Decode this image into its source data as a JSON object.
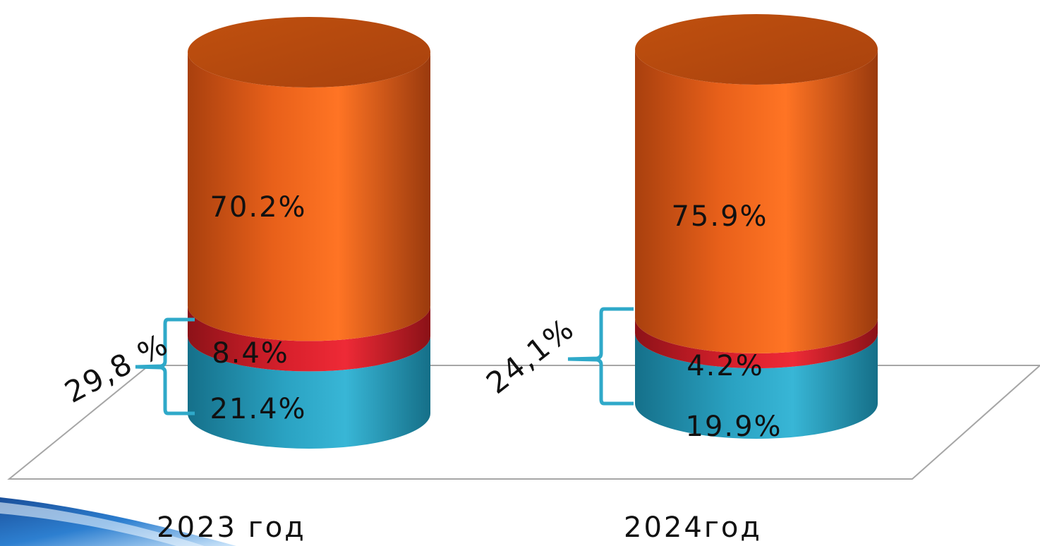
{
  "chart_data": {
    "type": "bar",
    "style": "stacked-3d-cylinder",
    "categories": [
      "2023 год",
      "2024год"
    ],
    "series": [
      {
        "values": [
          21.4,
          19.9
        ],
        "labels": [
          "21.4%",
          "19.9%"
        ],
        "color": "#2fa9c9"
      },
      {
        "values": [
          8.4,
          4.2
        ],
        "labels": [
          "8.4%",
          "4.2%"
        ],
        "color": "#de2430"
      },
      {
        "values": [
          70.2,
          75.9
        ],
        "labels": [
          "70.2%",
          "75.9%"
        ],
        "color": "#f26b1e"
      }
    ],
    "group_annotations": [
      {
        "category": "2023 год",
        "text": "29,8 %"
      },
      {
        "category": "2024год",
        "text": "24,1%"
      }
    ],
    "ylim": [
      0,
      100
    ],
    "legend": "none",
    "grid": false,
    "title": "",
    "xlabel": "",
    "ylabel": ""
  }
}
